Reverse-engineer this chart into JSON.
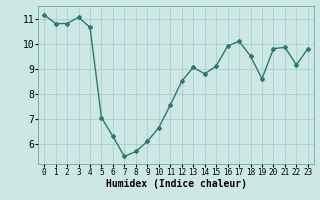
{
  "x": [
    0,
    1,
    2,
    3,
    4,
    5,
    6,
    7,
    8,
    9,
    10,
    11,
    12,
    13,
    14,
    15,
    16,
    17,
    18,
    19,
    20,
    21,
    22,
    23
  ],
  "y": [
    11.15,
    10.8,
    10.8,
    11.05,
    10.65,
    7.05,
    6.3,
    5.5,
    5.7,
    6.1,
    6.65,
    7.55,
    8.5,
    9.05,
    8.8,
    9.1,
    9.9,
    10.1,
    9.5,
    8.6,
    9.8,
    9.85,
    9.15,
    9.8
  ],
  "line_color": "#2a7a6f",
  "marker": "D",
  "marker_size": 2,
  "bg_color": "#cde8e4",
  "grid_color": "#aacfcb",
  "xlabel": "Humidex (Indice chaleur)",
  "ylim": [
    5.2,
    11.5
  ],
  "xlim": [
    -0.5,
    23.5
  ],
  "yticks": [
    6,
    7,
    8,
    9,
    10,
    11
  ],
  "xticks": [
    0,
    1,
    2,
    3,
    4,
    5,
    6,
    7,
    8,
    9,
    10,
    11,
    12,
    13,
    14,
    15,
    16,
    17,
    18,
    19,
    20,
    21,
    22,
    23
  ],
  "xlabel_fontsize": 7,
  "ytick_fontsize": 7,
  "xtick_fontsize": 5.5,
  "line_width": 1.0
}
